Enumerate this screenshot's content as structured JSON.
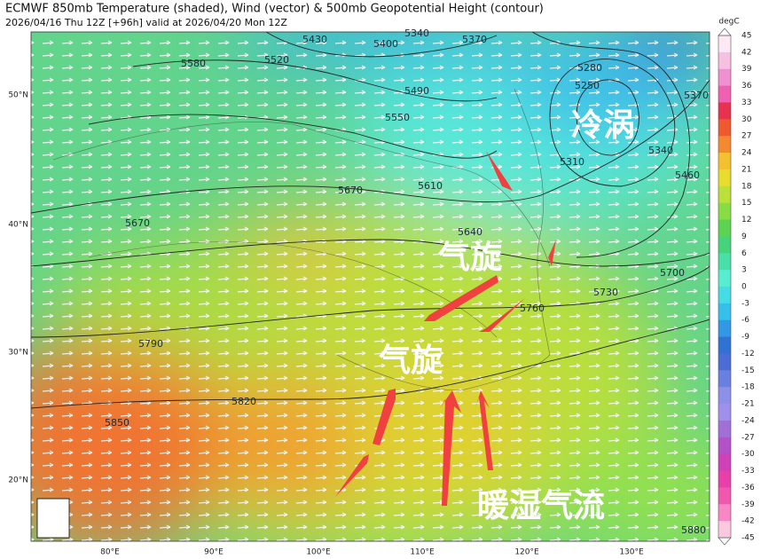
{
  "header": {
    "title": "ECMWF 850mb Temperature (shaded), Wind (vector) & 500mb Geopotential Height (contour)",
    "subtitle": "2026/04/16 Thu 12Z [+96h] valid at 2026/04/20 Mon 12Z"
  },
  "map": {
    "contour_labels": [
      "5430",
      "5400",
      "5340",
      "5370",
      "5580",
      "5520",
      "5490",
      "5550",
      "5280",
      "5250",
      "5310",
      "5340",
      "5370",
      "5460",
      "5610",
      "5670",
      "5670",
      "5640",
      "5700",
      "5730",
      "5760",
      "5790",
      "5820",
      "5850",
      "5880"
    ],
    "lat_labels": [
      "50°N",
      "40°N",
      "30°N",
      "20°N"
    ],
    "lon_labels": [
      "80°E",
      "90°E",
      "100°E",
      "110°E",
      "120°E",
      "130°E"
    ],
    "annotations": [
      "冷涡",
      "气旋",
      "气旋",
      "暖湿气流"
    ]
  },
  "colorbar": {
    "unit": "degC",
    "labels": [
      45,
      42,
      39,
      36,
      33,
      30,
      27,
      24,
      21,
      18,
      15,
      12,
      9,
      6,
      3,
      0,
      -3,
      -6,
      -9,
      -12,
      -15,
      -18,
      -21,
      -24,
      -27,
      -30,
      -33,
      -36,
      -39,
      -42,
      -45
    ]
  }
}
